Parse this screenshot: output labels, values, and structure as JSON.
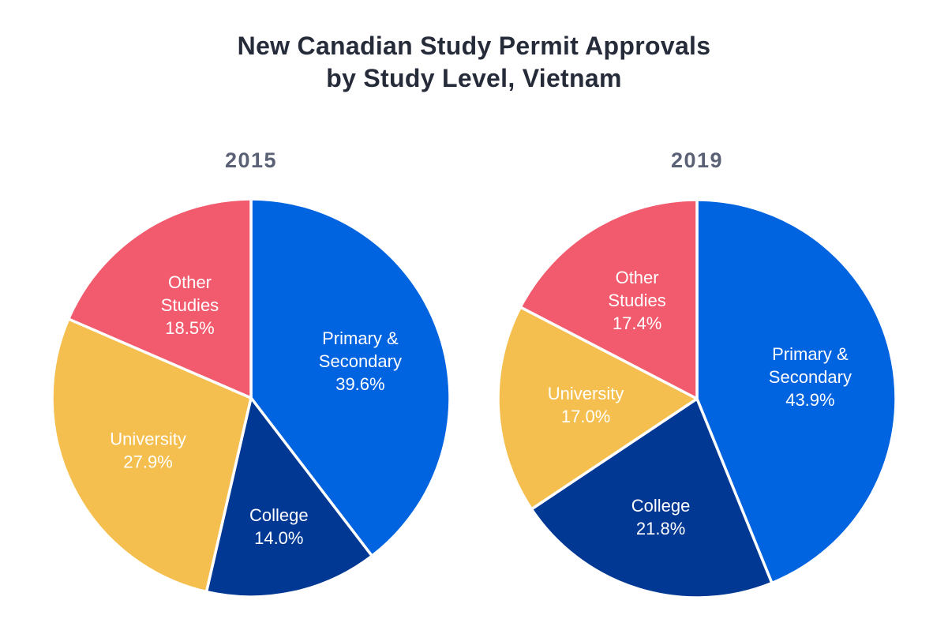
{
  "title_lines": [
    "New Canadian Study Permit Approvals",
    "by Study Level, Vietnam"
  ],
  "colors": {
    "Primary & Secondary": "#0063e0",
    "College": "#003894",
    "University": "#f5bf4f",
    "Other Studies": "#f25b6e"
  },
  "chart_data": [
    {
      "type": "pie",
      "title": "2015",
      "unit": "%",
      "slices": [
        {
          "label": "Primary & Secondary",
          "label_lines": [
            "Primary &",
            "Secondary"
          ],
          "value": 39.6,
          "value_text": "39.6%"
        },
        {
          "label": "College",
          "label_lines": [
            "College"
          ],
          "value": 14.0,
          "value_text": "14.0%"
        },
        {
          "label": "University",
          "label_lines": [
            "University"
          ],
          "value": 27.9,
          "value_text": "27.9%"
        },
        {
          "label": "Other Studies",
          "label_lines": [
            "Other",
            "Studies"
          ],
          "value": 18.5,
          "value_text": "18.5%"
        }
      ]
    },
    {
      "type": "pie",
      "title": "2019",
      "unit": "%",
      "slices": [
        {
          "label": "Primary & Secondary",
          "label_lines": [
            "Primary &",
            "Secondary"
          ],
          "value": 43.9,
          "value_text": "43.9%"
        },
        {
          "label": "College",
          "label_lines": [
            "College"
          ],
          "value": 21.8,
          "value_text": "21.8%"
        },
        {
          "label": "University",
          "label_lines": [
            "University"
          ],
          "value": 17.0,
          "value_text": "17.0%"
        },
        {
          "label": "Other Studies",
          "label_lines": [
            "Other",
            "Studies"
          ],
          "value": 17.4,
          "value_text": "17.4%"
        }
      ]
    }
  ]
}
